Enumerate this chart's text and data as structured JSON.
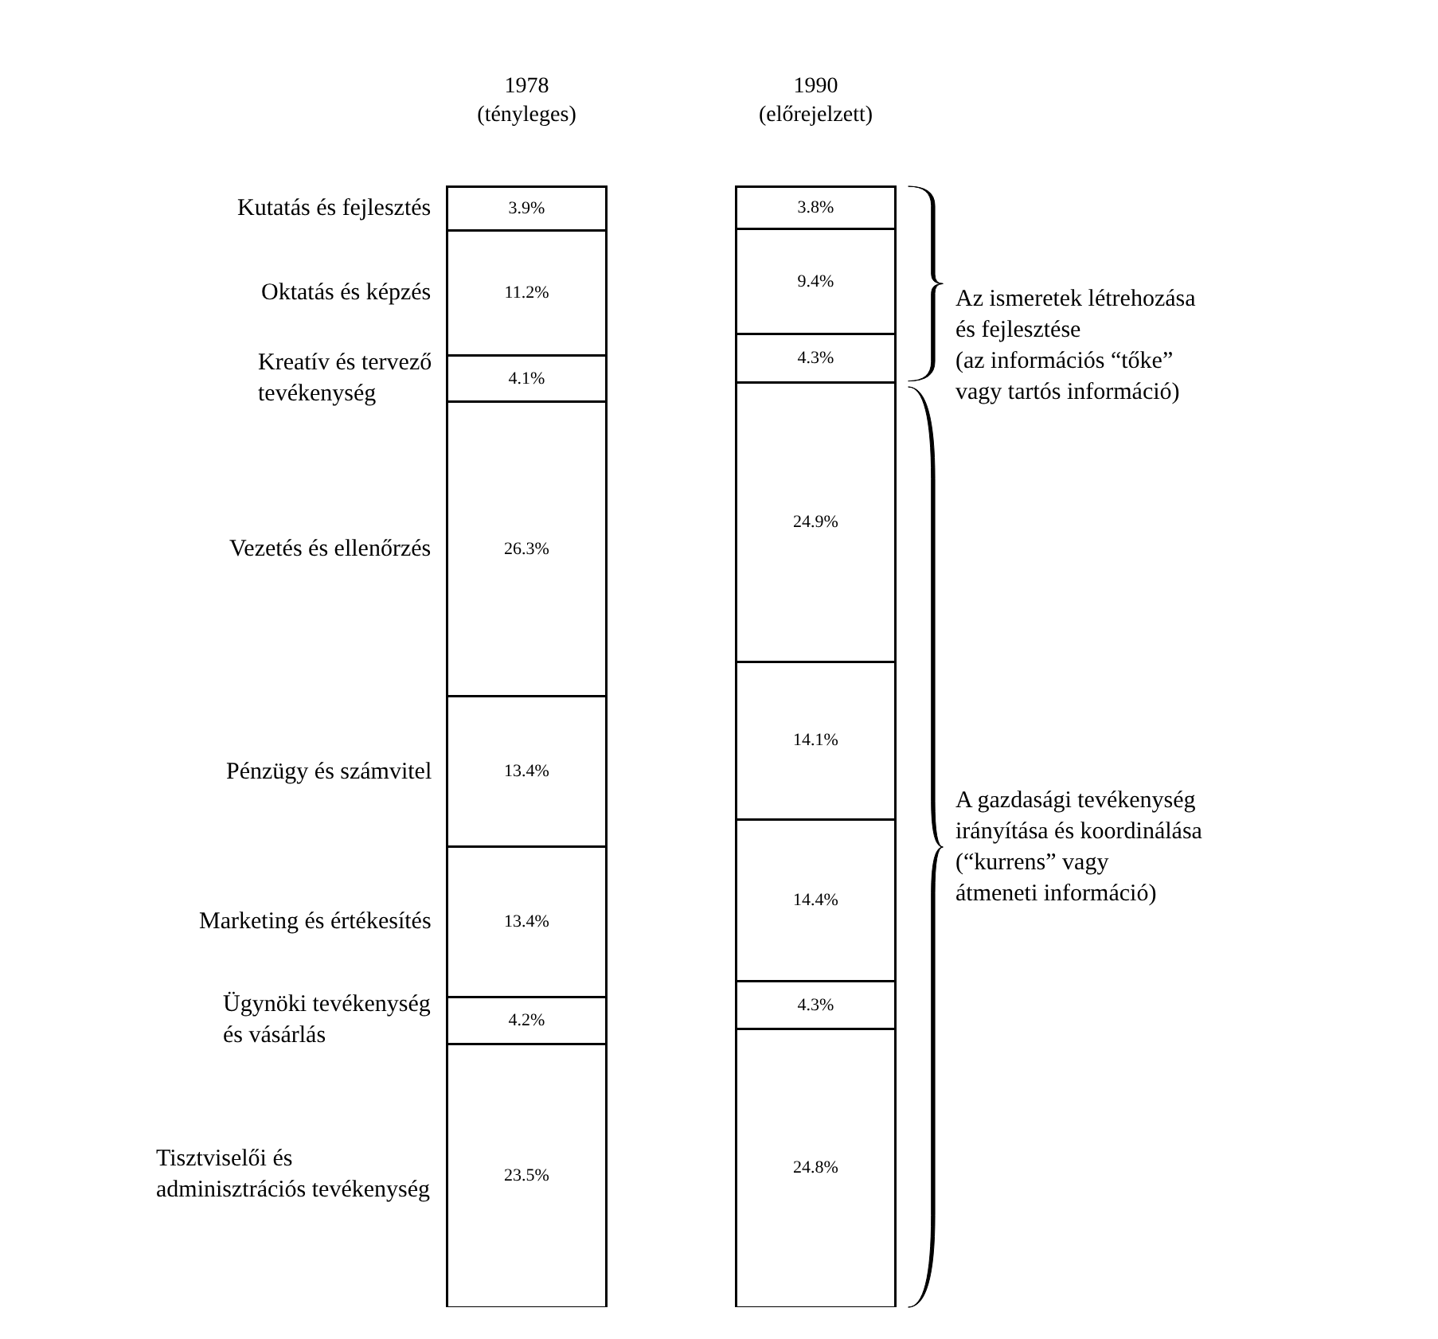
{
  "chart_data": {
    "type": "bar",
    "stacked": true,
    "legend": false,
    "categories": [
      "1978\n(tényleges)",
      "1990\n(előrejelzett)"
    ],
    "series": [
      {
        "name": "Tisztviselői és\nadminisztrációs tevékenység",
        "color": "#ffffff",
        "values": [
          23.5,
          24.8
        ],
        "value_labels": [
          "23.5%",
          "24.8%"
        ]
      },
      {
        "name": "Ügynöki tevékenység\nés vásárlás",
        "color": "#ffffff",
        "values": [
          4.2,
          4.3
        ],
        "value_labels": [
          "4.2%",
          "4.3%"
        ]
      },
      {
        "name": "Marketing és értékesítés",
        "color": "#ffffff",
        "values": [
          13.4,
          14.4
        ],
        "value_labels": [
          "13.4%",
          "14.4%"
        ]
      },
      {
        "name": "Pénzügy és számvitel",
        "color": "#ffffff",
        "values": [
          13.4,
          14.1
        ],
        "value_labels": [
          "13.4%",
          "14.1%"
        ]
      },
      {
        "name": "Vezetés és ellenőrzés",
        "color": "#ffffff",
        "values": [
          26.3,
          24.9
        ],
        "value_labels": [
          "26.3%",
          "24.9%"
        ]
      },
      {
        "name": "Kreatív és tervező\ntevékenység",
        "color": "#ffffff",
        "values": [
          4.1,
          4.3
        ],
        "value_labels": [
          "4.1%",
          "4.3%"
        ]
      },
      {
        "name": "Oktatás és képzés",
        "color": "#ffffff",
        "values": [
          11.2,
          9.4
        ],
        "value_labels": [
          "11.2%",
          "9.4%"
        ]
      },
      {
        "name": "Kutatás és fejlesztés",
        "color": "#ffffff",
        "values": [
          3.9,
          3.8
        ],
        "value_labels": [
          "3.9%",
          "3.8%"
        ]
      }
    ],
    "annotations": [
      "Az ismeretek létrehozása\nés fejlesztése\n(az információs “tőke”\nvagy tartós információ)",
      "A gazdasági tevékenység\nirányítása és koordinálása\n(“kurrens” vagy\nátmeneti információ)"
    ]
  }
}
